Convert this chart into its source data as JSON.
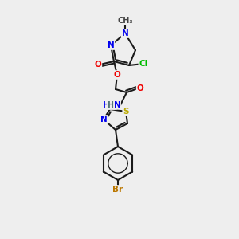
{
  "background_color": "#eeeeee",
  "bond_color": "#1a1a1a",
  "atom_colors": {
    "N": "#0000ee",
    "O": "#ee0000",
    "S": "#bbaa00",
    "Cl": "#00bb00",
    "Br": "#bb7700",
    "H": "#557777",
    "C": "#1a1a1a"
  },
  "figsize": [
    3.0,
    3.0
  ],
  "dpi": 100
}
